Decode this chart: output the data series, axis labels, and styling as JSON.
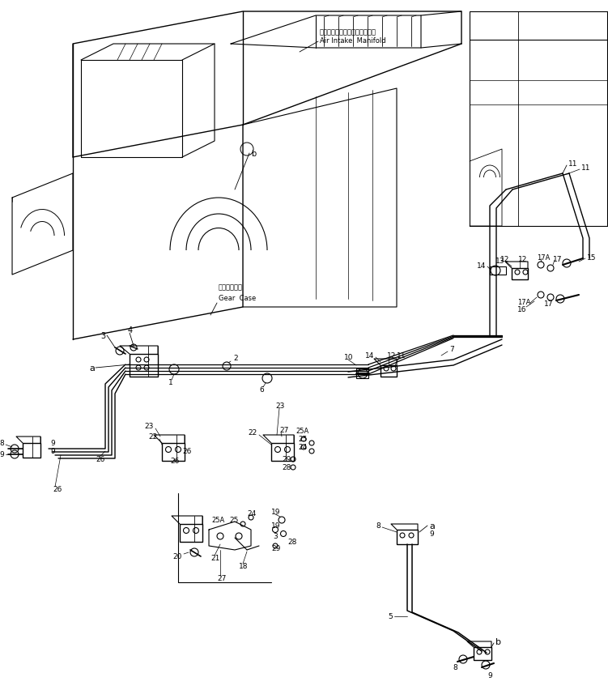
{
  "background_color": "#ffffff",
  "line_color": "#000000",
  "fig_width": 7.51,
  "fig_height": 8.53,
  "dpi": 100,
  "labels": {
    "air_intake_jp": "エアーインテークマニホールド",
    "air_intake_en": "Air Intake  Manifold",
    "gear_case_jp": "ギヤーケース",
    "gear_case_en": "Gear  Case"
  }
}
